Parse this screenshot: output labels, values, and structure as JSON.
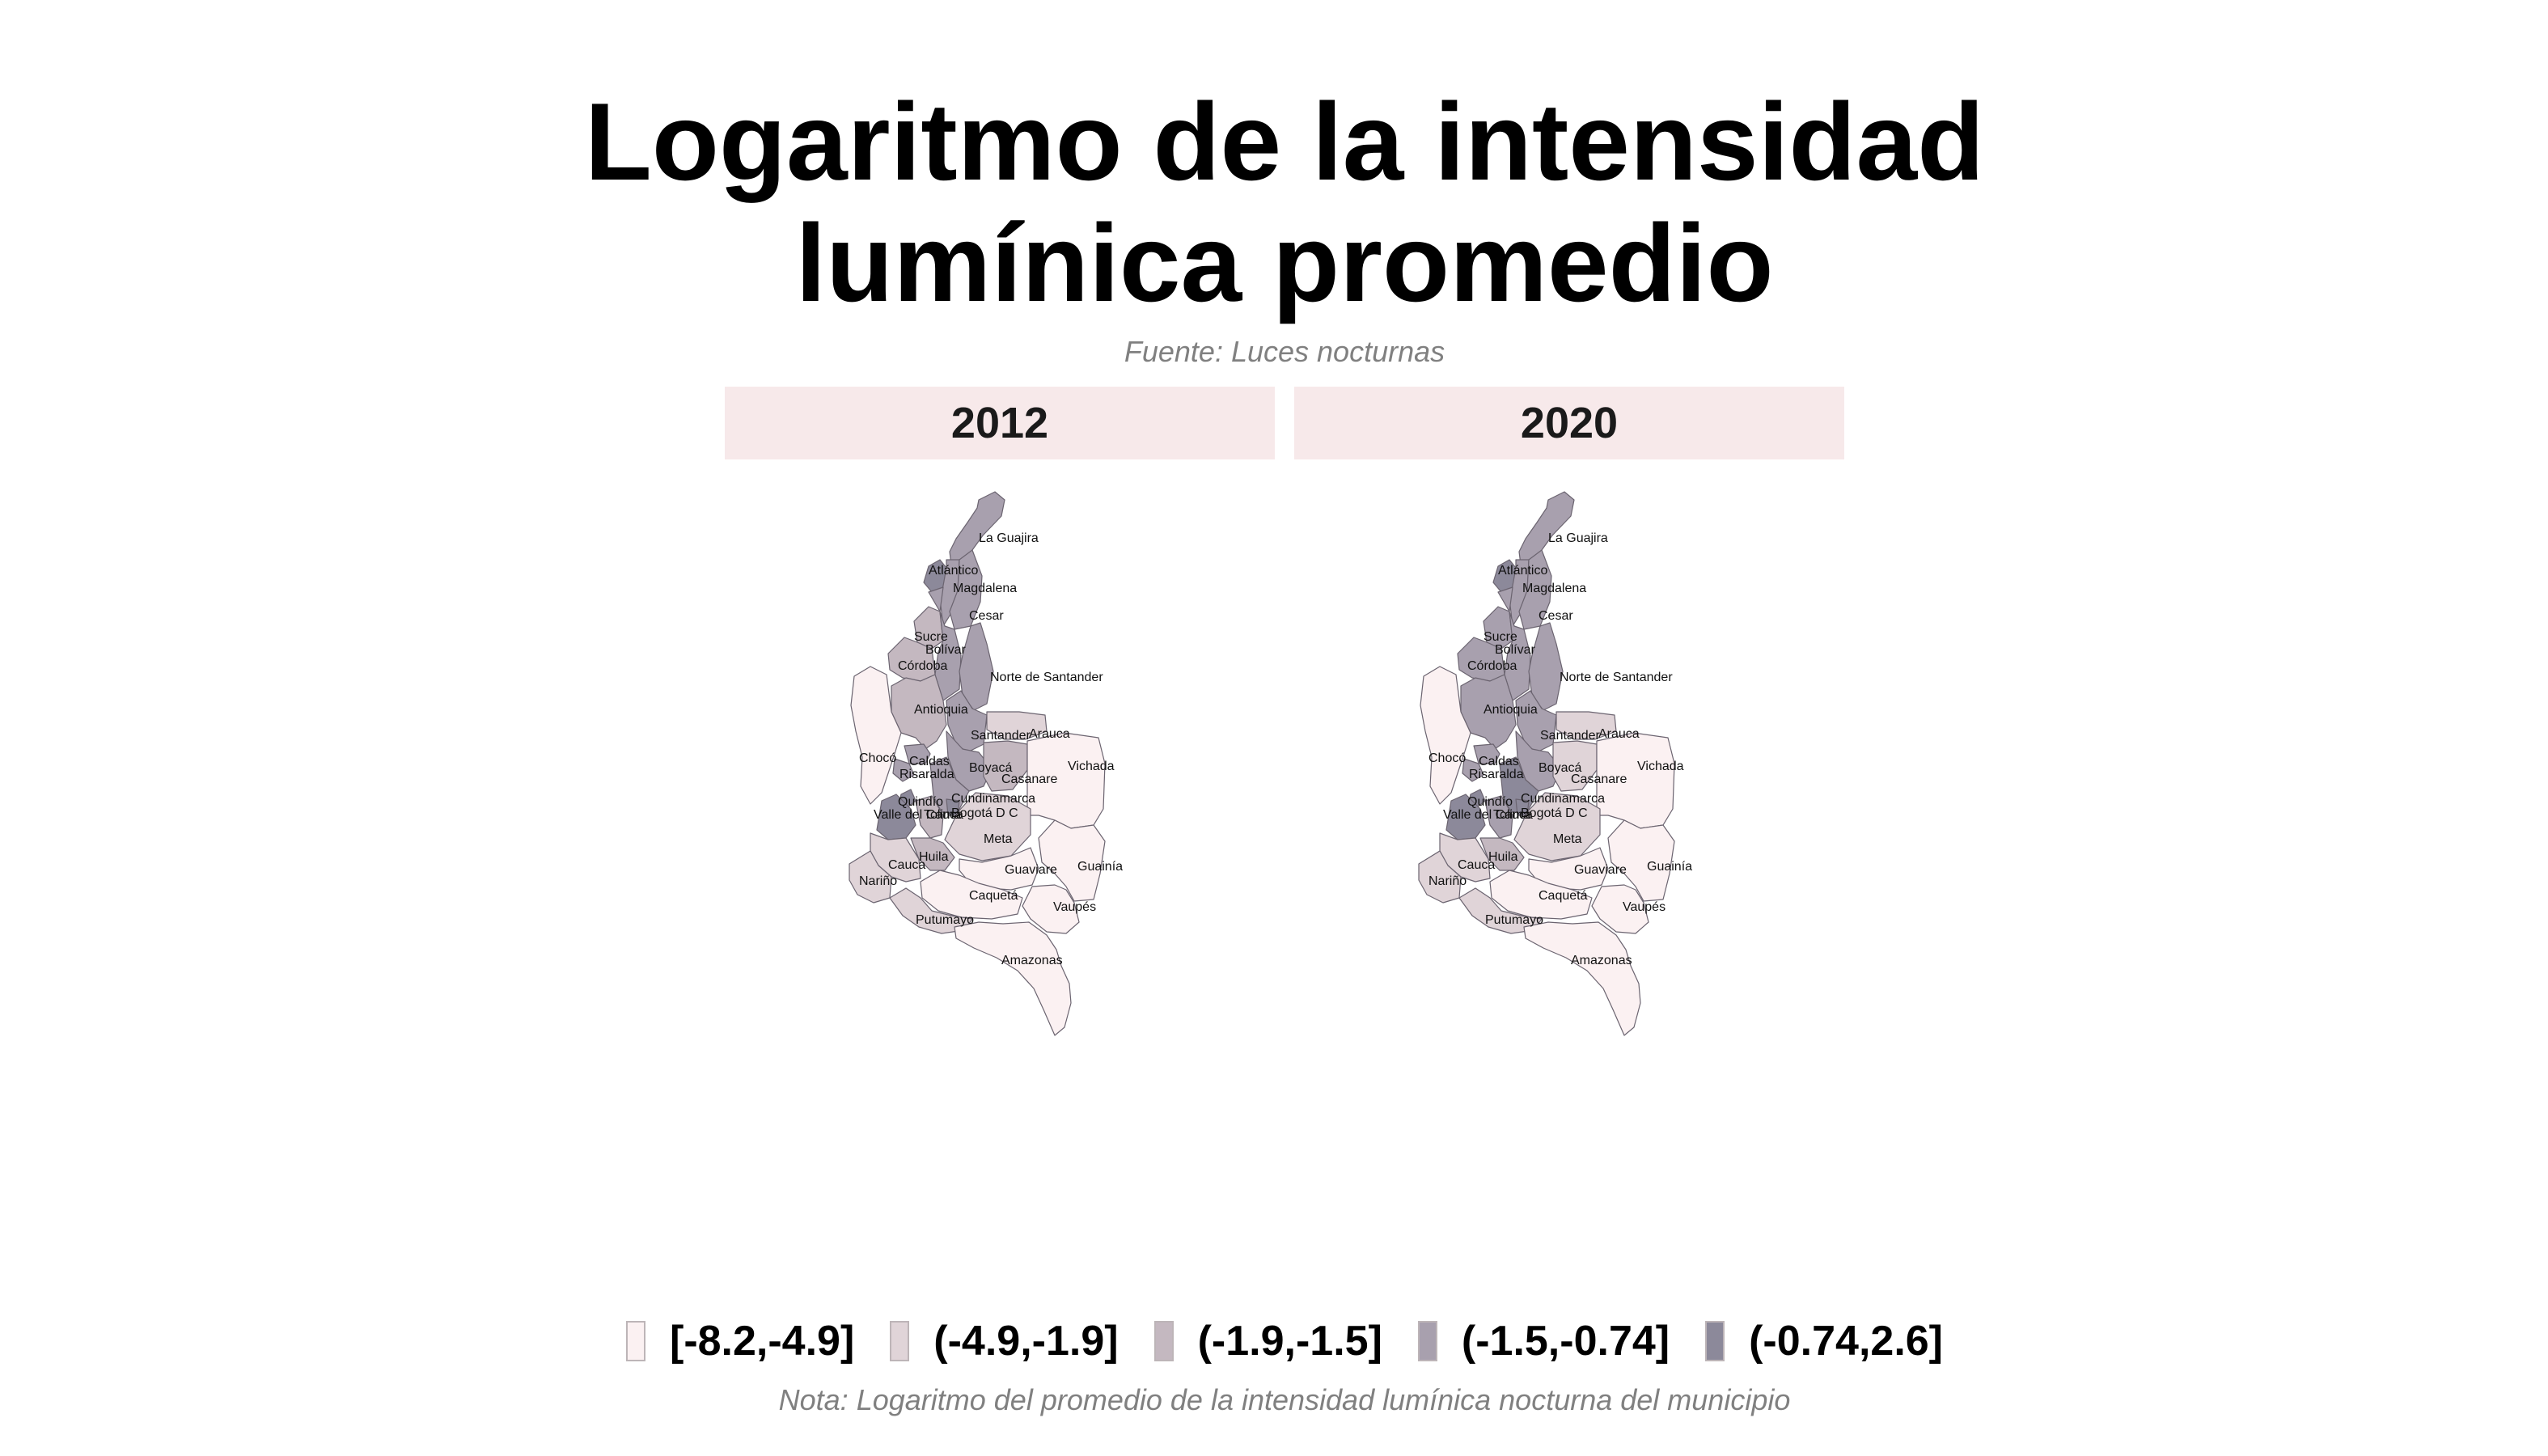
{
  "title_lines": [
    "Logaritmo de la intensidad",
    "lumínica promedio"
  ],
  "subtitle": "Fuente: Luces nocturnas",
  "panels": [
    {
      "year": "2012",
      "departments": [
        {
          "name": "La Guajira",
          "class": 3
        },
        {
          "name": "Atlántico",
          "class": 4
        },
        {
          "name": "Magdalena",
          "class": 3
        },
        {
          "name": "Cesar",
          "class": 3
        },
        {
          "name": "Sucre",
          "class": 2
        },
        {
          "name": "Bolívar",
          "class": 3
        },
        {
          "name": "Córdoba",
          "class": 2
        },
        {
          "name": "Norte de Santander",
          "class": 3
        },
        {
          "name": "Antioquia",
          "class": 2
        },
        {
          "name": "Santander",
          "class": 3
        },
        {
          "name": "Arauca",
          "class": 1
        },
        {
          "name": "Chocó",
          "class": 0
        },
        {
          "name": "Caldas",
          "class": 3
        },
        {
          "name": "Risaralda",
          "class": 3
        },
        {
          "name": "Boyacá",
          "class": 3
        },
        {
          "name": "Casanare",
          "class": 2
        },
        {
          "name": "Cundinamarca",
          "class": 3
        },
        {
          "name": "Quindío",
          "class": 4
        },
        {
          "name": "Bogotá D C",
          "class": 4
        },
        {
          "name": "Vichada",
          "class": 0
        },
        {
          "name": "Valle del Cauca",
          "class": 4
        },
        {
          "name": "Tolima",
          "class": 2
        },
        {
          "name": "Meta",
          "class": 1
        },
        {
          "name": "Huila",
          "class": 2
        },
        {
          "name": "Guainía",
          "class": 0
        },
        {
          "name": "Cauca",
          "class": 1
        },
        {
          "name": "Guaviare",
          "class": 0
        },
        {
          "name": "Nariño",
          "class": 1
        },
        {
          "name": "Caquetá",
          "class": 0
        },
        {
          "name": "Vaupés",
          "class": 0
        },
        {
          "name": "Putumayo",
          "class": 1
        },
        {
          "name": "Amazonas",
          "class": 0
        }
      ]
    },
    {
      "year": "2020",
      "departments": [
        {
          "name": "La Guajira",
          "class": 3
        },
        {
          "name": "Atlántico",
          "class": 4
        },
        {
          "name": "Magdalena",
          "class": 3
        },
        {
          "name": "Cesar",
          "class": 3
        },
        {
          "name": "Sucre",
          "class": 3
        },
        {
          "name": "Bolívar",
          "class": 3
        },
        {
          "name": "Córdoba",
          "class": 3
        },
        {
          "name": "Norte de Santander",
          "class": 3
        },
        {
          "name": "Antioquia",
          "class": 3
        },
        {
          "name": "Santander",
          "class": 3
        },
        {
          "name": "Arauca",
          "class": 1
        },
        {
          "name": "Chocó",
          "class": 0
        },
        {
          "name": "Caldas",
          "class": 3
        },
        {
          "name": "Risaralda",
          "class": 3
        },
        {
          "name": "Boyacá",
          "class": 3
        },
        {
          "name": "Casanare",
          "class": 1
        },
        {
          "name": "Cundinamarca",
          "class": 4
        },
        {
          "name": "Quindío",
          "class": 4
        },
        {
          "name": "Bogotá D C",
          "class": 4
        },
        {
          "name": "Vichada",
          "class": 0
        },
        {
          "name": "Valle del Cauca",
          "class": 4
        },
        {
          "name": "Tolima",
          "class": 3
        },
        {
          "name": "Meta",
          "class": 1
        },
        {
          "name": "Huila",
          "class": 2
        },
        {
          "name": "Guainía",
          "class": 0
        },
        {
          "name": "Cauca",
          "class": 1
        },
        {
          "name": "Guaviare",
          "class": 0
        },
        {
          "name": "Nariño",
          "class": 1
        },
        {
          "name": "Caquetá",
          "class": 0
        },
        {
          "name": "Vaupés",
          "class": 0
        },
        {
          "name": "Putumayo",
          "class": 1
        },
        {
          "name": "Amazonas",
          "class": 0
        }
      ]
    }
  ],
  "legend": [
    {
      "label": "[-8.2,-4.9]",
      "color": "#fbf1f2"
    },
    {
      "label": "(-4.9,-1.9]",
      "color": "#e0d4d8"
    },
    {
      "label": "(-1.9,-1.5]",
      "color": "#c4b8c0"
    },
    {
      "label": "(-1.5,-0.74]",
      "color": "#a8a0ae"
    },
    {
      "label": "(-0.74,2.6]",
      "color": "#8c899a"
    }
  ],
  "note": "Nota: Logaritmo del promedio de la intensidad lumínica nocturna del municipio"
}
